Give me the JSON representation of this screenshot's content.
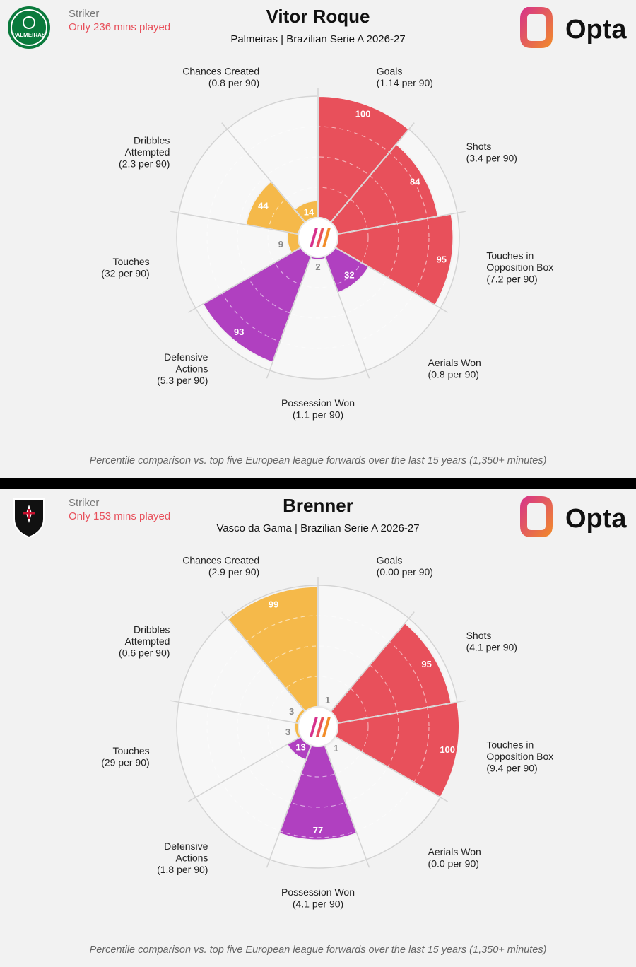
{
  "panels": [
    {
      "position": "Striker",
      "minutes_note": "Only 236 mins played",
      "player": "Vitor Roque",
      "team_league": "Palmeiras | Brazilian Serie A 2026-27",
      "crest_text": "PALMEIRAS",
      "brand": "Opta",
      "footnote": "Percentile comparison vs. top five European league forwards over the last 15 years (1,350+ minutes)",
      "chart_data": {
        "type": "polar-bar",
        "scale": [
          0,
          100
        ],
        "categories": [
          {
            "name": "Goals",
            "sub": "(1.14 per 90)",
            "value": 100,
            "group": "attack"
          },
          {
            "name": "Shots",
            "sub": "(3.4 per 90)",
            "value": 84,
            "group": "attack"
          },
          {
            "name": "Touches in|Opposition Box",
            "sub": "(7.2 per 90)",
            "value": 95,
            "group": "attack"
          },
          {
            "name": "Aerials Won",
            "sub": "(0.8 per 90)",
            "value": 32,
            "group": "defence"
          },
          {
            "name": "Possession Won",
            "sub": "(1.1 per 90)",
            "value": 2,
            "group": "defence"
          },
          {
            "name": "Defensive|Actions",
            "sub": "(5.3 per 90)",
            "value": 93,
            "group": "defence"
          },
          {
            "name": "Touches",
            "sub": "(32 per 90)",
            "value": 9,
            "group": "possession"
          },
          {
            "name": "Dribbles|Attempted",
            "sub": "(2.3 per 90)",
            "value": 44,
            "group": "possession"
          },
          {
            "name": "Chances Created",
            "sub": "(0.8 per 90)",
            "value": 14,
            "group": "possession"
          }
        ]
      }
    },
    {
      "position": "Striker",
      "minutes_note": "Only 153 mins played",
      "player": "Brenner",
      "team_league": "Vasco da Gama | Brazilian Serie A 2026-27",
      "crest_text": "VASCO",
      "brand": "Opta",
      "footnote": "Percentile comparison vs. top five European league forwards over the last 15 years (1,350+ minutes)",
      "chart_data": {
        "type": "polar-bar",
        "scale": [
          0,
          100
        ],
        "categories": [
          {
            "name": "Goals",
            "sub": "(0.00 per 90)",
            "value": 1,
            "group": "attack"
          },
          {
            "name": "Shots",
            "sub": "(4.1 per 90)",
            "value": 95,
            "group": "attack"
          },
          {
            "name": "Touches in|Opposition Box",
            "sub": "(9.4 per 90)",
            "value": 100,
            "group": "attack"
          },
          {
            "name": "Aerials Won",
            "sub": "(0.0 per 90)",
            "value": 1,
            "group": "defence"
          },
          {
            "name": "Possession Won",
            "sub": "(4.1 per 90)",
            "value": 77,
            "group": "defence"
          },
          {
            "name": "Defensive|Actions",
            "sub": "(1.8 per 90)",
            "value": 13,
            "group": "defence"
          },
          {
            "name": "Touches",
            "sub": "(29 per 90)",
            "value": 3,
            "group": "possession"
          },
          {
            "name": "Dribbles|Attempted",
            "sub": "(0.6 per 90)",
            "value": 3,
            "group": "possession"
          },
          {
            "name": "Chances Created",
            "sub": "(2.9 per 90)",
            "value": 99,
            "group": "possession"
          }
        ]
      }
    }
  ],
  "colors": {
    "attack": "#e8505b",
    "defence": "#b040c0",
    "possession": "#f5b94a",
    "grid": "#d4d4d4",
    "background": "#f2f2f2",
    "palmeiras_green": "#0a7a3c",
    "opta_gradient": [
      "#d6318c",
      "#f28c28"
    ]
  }
}
